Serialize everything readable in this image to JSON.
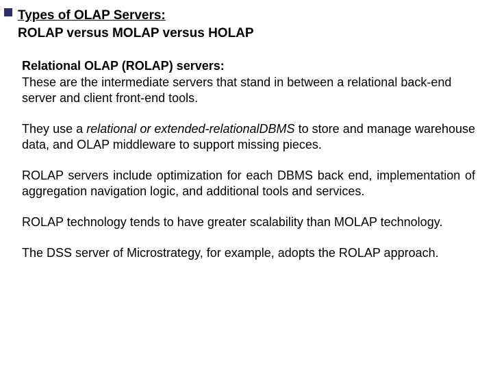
{
  "colors": {
    "bullet": "#2b2f6a",
    "text": "#000000",
    "background": "#ffffff"
  },
  "typography": {
    "title_fontsize_pt": 14,
    "body_fontsize_pt": 13,
    "font_family": "Arial"
  },
  "title": {
    "line1": "Types of OLAP Servers:",
    "line2": "ROLAP versus MOLAP versus HOLAP"
  },
  "section_heading": "Relational OLAP (ROLAP) servers:",
  "paragraphs": {
    "p1": "These are the intermediate servers that stand in between a relational back-end server and client front-end tools.",
    "p2_pre": "They use a ",
    "p2_italic": "relational or extended-relationalDBMS",
    "p2_post": " to store and manage warehouse data, and OLAP middleware to support missing pieces.",
    "p3": "ROLAP servers include optimization for each DBMS back end, implementation of aggregation navigation logic, and additional tools and services.",
    "p4": "ROLAP technology tends to have greater scalability than MOLAP technology.",
    "p5": "The DSS server of Microstrategy, for example, adopts the ROLAP approach."
  }
}
